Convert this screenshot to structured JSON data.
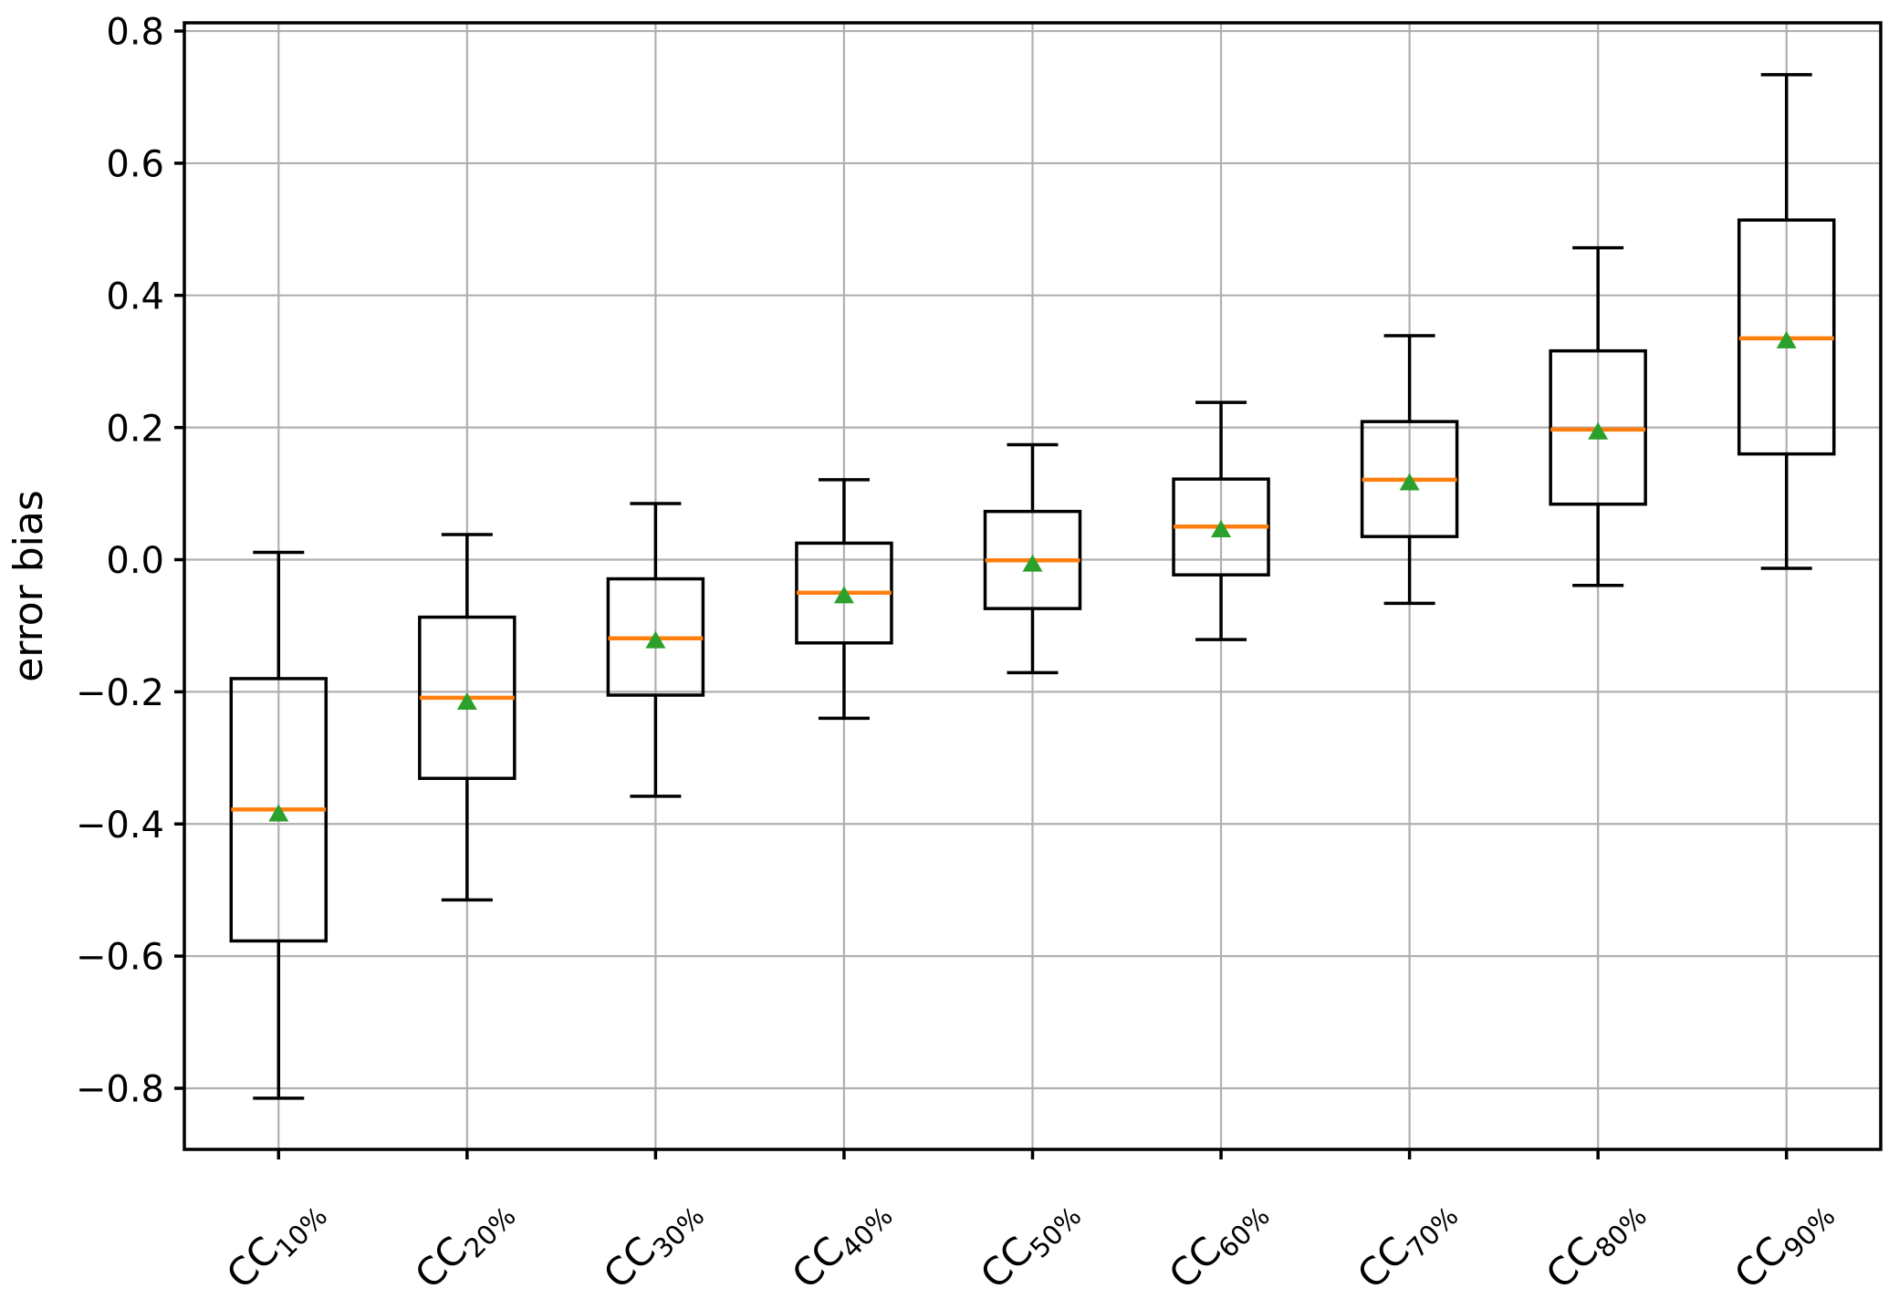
{
  "figure": {
    "title": "",
    "background_color": "#ffffff"
  },
  "chart_data": {
    "type": "boxplot",
    "title": "",
    "xlabel": "",
    "ylabel": "error bias",
    "categories": [
      "CC10%",
      "CC20%",
      "CC30%",
      "CC40%",
      "CC50%",
      "CC60%",
      "CC70%",
      "CC80%",
      "CC90%"
    ],
    "category_label_parts": [
      {
        "base": "CC",
        "sub": "10%"
      },
      {
        "base": "CC",
        "sub": "20%"
      },
      {
        "base": "CC",
        "sub": "30%"
      },
      {
        "base": "CC",
        "sub": "40%"
      },
      {
        "base": "CC",
        "sub": "50%"
      },
      {
        "base": "CC",
        "sub": "60%"
      },
      {
        "base": "CC",
        "sub": "70%"
      },
      {
        "base": "CC",
        "sub": "80%"
      },
      {
        "base": "CC",
        "sub": "90%"
      }
    ],
    "boxes": [
      {
        "label": "CC10%",
        "whislo": -0.815,
        "q1": -0.577,
        "med": -0.378,
        "mean": -0.383,
        "q3": -0.18,
        "whishi": 0.011
      },
      {
        "label": "CC20%",
        "whislo": -0.515,
        "q1": -0.331,
        "med": -0.209,
        "mean": -0.214,
        "q3": -0.087,
        "whishi": 0.038
      },
      {
        "label": "CC30%",
        "whislo": -0.358,
        "q1": -0.205,
        "med": -0.119,
        "mean": -0.121,
        "q3": -0.029,
        "whishi": 0.085
      },
      {
        "label": "CC40%",
        "whislo": -0.24,
        "q1": -0.126,
        "med": -0.05,
        "mean": -0.053,
        "q3": 0.025,
        "whishi": 0.121
      },
      {
        "label": "CC50%",
        "whislo": -0.171,
        "q1": -0.074,
        "med": -0.001,
        "mean": -0.005,
        "q3": 0.073,
        "whishi": 0.174
      },
      {
        "label": "CC60%",
        "whislo": -0.121,
        "q1": -0.023,
        "med": 0.05,
        "mean": 0.047,
        "q3": 0.122,
        "whishi": 0.238
      },
      {
        "label": "CC70%",
        "whislo": -0.066,
        "q1": 0.035,
        "med": 0.121,
        "mean": 0.118,
        "q3": 0.209,
        "whishi": 0.339
      },
      {
        "label": "CC80%",
        "whislo": -0.039,
        "q1": 0.084,
        "med": 0.197,
        "mean": 0.195,
        "q3": 0.316,
        "whishi": 0.472
      },
      {
        "label": "CC90%",
        "whislo": -0.013,
        "q1": 0.16,
        "med": 0.335,
        "mean": 0.333,
        "q3": 0.514,
        "whishi": 0.734
      }
    ],
    "ylim": [
      -0.8925,
      0.8125
    ],
    "yticks": [
      0.8,
      0.6,
      0.4,
      0.2,
      0.0,
      -0.2,
      -0.4,
      -0.6,
      -0.8
    ],
    "grid": true,
    "legend": null,
    "colors": {
      "box_line": "#000000",
      "whisker_line": "#000000",
      "median_line": "#ff7f0e",
      "mean_marker": "#2ca02c",
      "grid_line": "#b0b0b0",
      "spine": "#000000",
      "tick_label": "#000000",
      "background": "#ffffff"
    }
  }
}
